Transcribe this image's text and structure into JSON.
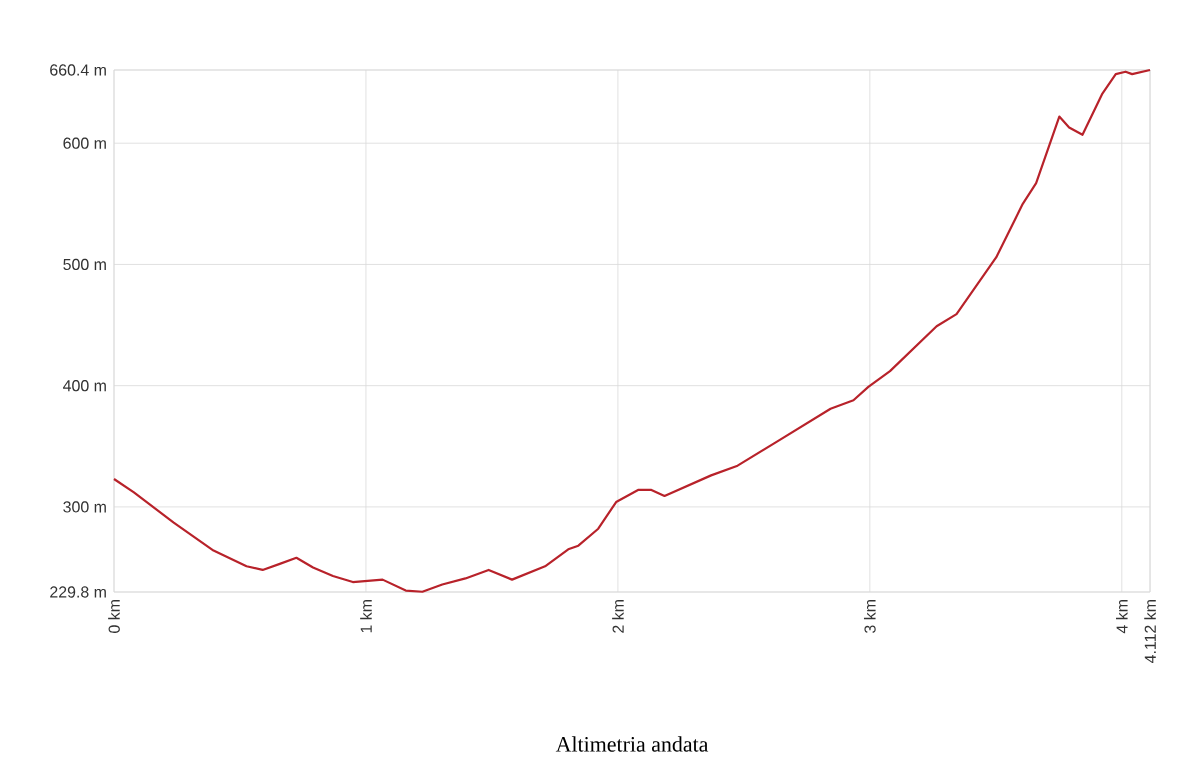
{
  "chart_data": {
    "type": "line",
    "title": "Altimetria andata",
    "x": [
      0,
      0.079,
      0.237,
      0.395,
      0.526,
      0.59,
      0.658,
      0.724,
      0.79,
      0.869,
      0.948,
      1.066,
      1.158,
      1.224,
      1.303,
      1.395,
      1.487,
      1.58,
      1.711,
      1.803,
      1.843,
      1.922,
      1.993,
      2.08,
      2.133,
      2.185,
      2.37,
      2.475,
      2.633,
      2.844,
      2.935,
      2.994,
      3.08,
      3.265,
      3.344,
      3.502,
      3.607,
      3.66,
      3.752,
      3.791,
      3.844,
      3.923,
      3.976,
      4.015,
      4.041,
      4.112
    ],
    "series": [
      {
        "color": "#b8222a",
        "values": [
          323,
          312,
          287,
          264,
          251,
          248,
          253,
          258,
          250,
          243,
          238,
          240,
          231,
          230,
          236,
          241,
          248,
          240,
          251,
          265,
          268,
          282,
          304,
          314,
          314,
          309,
          326,
          334,
          354,
          381,
          388,
          399,
          412,
          449,
          459,
          506,
          550,
          567,
          622,
          613,
          607,
          641,
          657,
          659,
          657,
          660.4
        ]
      }
    ],
    "xlim": [
      0,
      4.112
    ],
    "xticks": [
      {
        "value": 0,
        "label": "0 km"
      },
      {
        "value": 1,
        "label": "1 km"
      },
      {
        "value": 2,
        "label": "2 km"
      },
      {
        "value": 3,
        "label": "3 km"
      },
      {
        "value": 4,
        "label": "4 km"
      },
      {
        "value": 4.112,
        "label": "4.112 km"
      }
    ],
    "ylim": [
      229.8,
      660.4
    ],
    "yticks": [
      {
        "value": 229.8,
        "label": "229.8 m"
      },
      {
        "value": 300,
        "label": "300 m"
      },
      {
        "value": 400,
        "label": "400 m"
      },
      {
        "value": 500,
        "label": "500 m"
      },
      {
        "value": 600,
        "label": "600 m"
      },
      {
        "value": 660.4,
        "label": "660.4 m"
      }
    ],
    "grid": true,
    "marker": "none",
    "line_style": "solid"
  }
}
